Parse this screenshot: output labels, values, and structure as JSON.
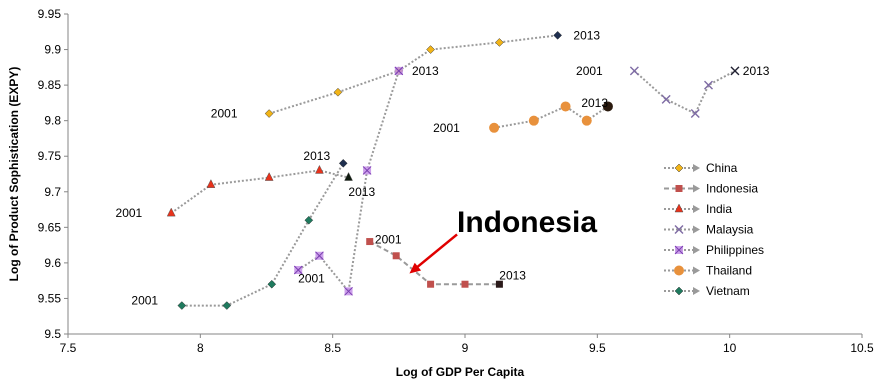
{
  "chart_data": {
    "type": "scatter",
    "xlabel": "Log of GDP Per Capita",
    "ylabel": "Log of Product Sophistication (EXPY)",
    "xlim": [
      7.5,
      10.5
    ],
    "ylim": [
      9.5,
      9.95
    ],
    "xticks": [
      "7.5",
      "8",
      "8.5",
      "9",
      "9.5",
      "10",
      "10.5"
    ],
    "yticks": [
      "9.5",
      "9.55",
      "9.6",
      "9.65",
      "9.7",
      "9.75",
      "9.8",
      "9.85",
      "9.9",
      "9.95"
    ],
    "grid": false,
    "legend_position": "right",
    "series": [
      {
        "name": "China",
        "marker": "diamond",
        "color": "#f2b417",
        "line": "dotted",
        "points": [
          [
            8.26,
            9.81
          ],
          [
            8.52,
            9.84
          ],
          [
            8.75,
            9.87
          ],
          [
            8.87,
            9.9
          ],
          [
            9.13,
            9.91
          ],
          [
            9.35,
            9.92
          ]
        ]
      },
      {
        "name": "Indonesia",
        "marker": "square",
        "color": "#c0504d",
        "line": "dashed",
        "points": [
          [
            8.64,
            9.63
          ],
          [
            8.74,
            9.61
          ],
          [
            8.87,
            9.57
          ],
          [
            9.0,
            9.57
          ],
          [
            9.13,
            9.57
          ]
        ]
      },
      {
        "name": "India",
        "marker": "triangle",
        "color": "#e8321b",
        "line": "dotted",
        "points": [
          [
            7.89,
            9.67
          ],
          [
            8.04,
            9.71
          ],
          [
            8.26,
            9.72
          ],
          [
            8.45,
            9.73
          ],
          [
            8.56,
            9.72
          ]
        ]
      },
      {
        "name": "Malaysia",
        "marker": "x",
        "color": "#7e6ba4",
        "line": "dotted",
        "points": [
          [
            9.64,
            9.87
          ],
          [
            9.76,
            9.83
          ],
          [
            9.87,
            9.81
          ],
          [
            9.92,
            9.85
          ],
          [
            10.02,
            9.87
          ]
        ]
      },
      {
        "name": "Philippines",
        "marker": "asterisk",
        "color": "#c48fe8",
        "line": "dotted",
        "points": [
          [
            8.37,
            9.59
          ],
          [
            8.45,
            9.61
          ],
          [
            8.56,
            9.56
          ],
          [
            8.63,
            9.73
          ],
          [
            8.75,
            9.87
          ]
        ]
      },
      {
        "name": "Thailand",
        "marker": "circle",
        "color": "#e8913c",
        "line": "dotted",
        "points": [
          [
            9.11,
            9.79
          ],
          [
            9.26,
            9.8
          ],
          [
            9.38,
            9.82
          ],
          [
            9.46,
            9.8
          ],
          [
            9.54,
            9.82
          ]
        ]
      },
      {
        "name": "Vietnam",
        "marker": "diamond",
        "color": "#1f7a5e",
        "line": "dotted",
        "points": [
          [
            7.93,
            9.54
          ],
          [
            8.1,
            9.54
          ],
          [
            8.27,
            9.57
          ],
          [
            8.41,
            9.66
          ],
          [
            8.54,
            9.74
          ]
        ]
      }
    ],
    "annotations": [
      {
        "text": "2001",
        "x": 8.09,
        "y": 9.81
      },
      {
        "text": "2013",
        "x": 9.46,
        "y": 9.92
      },
      {
        "text": "2013",
        "x": 8.85,
        "y": 9.87
      },
      {
        "text": "2001",
        "x": 9.47,
        "y": 9.87
      },
      {
        "text": "2013",
        "x": 10.1,
        "y": 9.87
      },
      {
        "text": "2013",
        "x": 9.49,
        "y": 9.825
      },
      {
        "text": "2001",
        "x": 8.93,
        "y": 9.79
      },
      {
        "text": "2013",
        "x": 8.44,
        "y": 9.75
      },
      {
        "text": "2013",
        "x": 8.61,
        "y": 9.7
      },
      {
        "text": "2001",
        "x": 7.73,
        "y": 9.67
      },
      {
        "text": "2001",
        "x": 8.71,
        "y": 9.633
      },
      {
        "text": "2013",
        "x": 9.18,
        "y": 9.582
      },
      {
        "text": "2001",
        "x": 8.42,
        "y": 9.578
      },
      {
        "text": "2001",
        "x": 7.79,
        "y": 9.547
      }
    ],
    "callout": {
      "text": "Indonesia",
      "arrow_from": [
        8.97,
        9.64
      ],
      "arrow_to": [
        8.79,
        9.585
      ]
    }
  }
}
